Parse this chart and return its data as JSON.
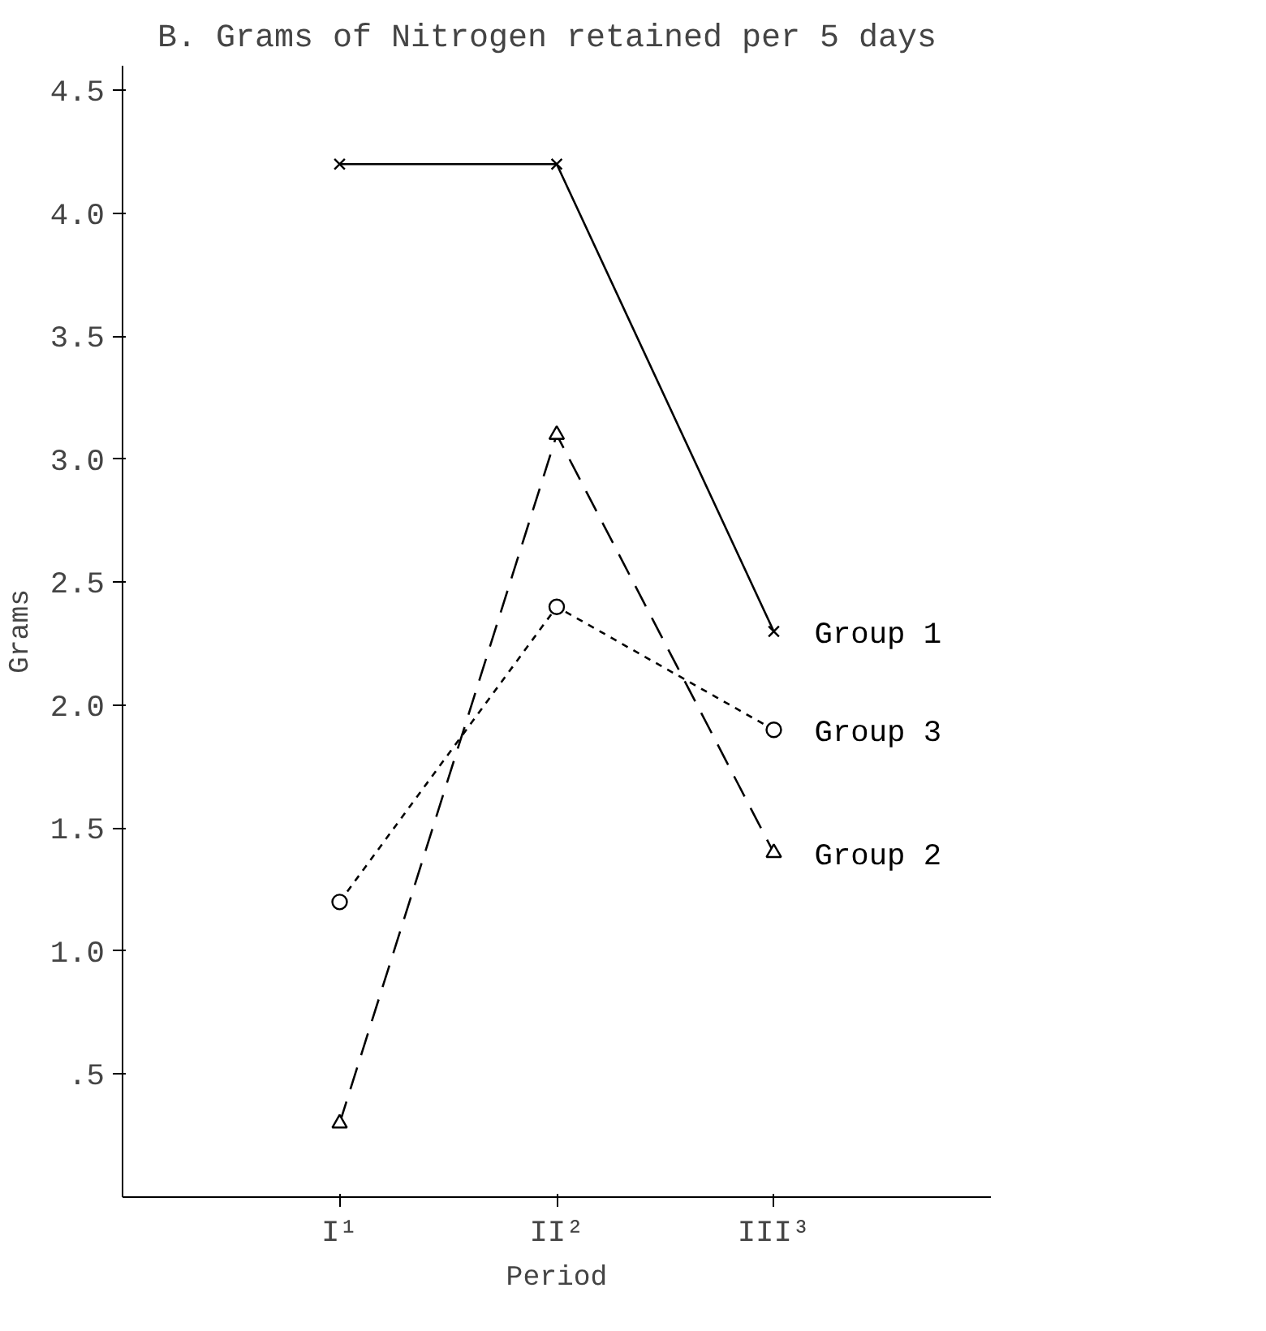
{
  "chart_data": {
    "type": "line",
    "title": "B.  Grams of Nitrogen retained per 5 days",
    "xlabel": "Period",
    "ylabel": "Grams",
    "categories": [
      "I¹",
      "II²",
      "III³"
    ],
    "series": [
      {
        "name": "Group 1",
        "color": "#000000",
        "values": [
          4.2,
          4.2,
          2.3
        ],
        "marker": "cross",
        "line_style": "solid"
      },
      {
        "name": "Group 2",
        "color": "#000000",
        "values": [
          0.3,
          3.1,
          1.4
        ],
        "marker": "triangle",
        "line_style": "dashed"
      },
      {
        "name": "Group 3",
        "color": "#000000",
        "values": [
          1.2,
          2.4,
          1.9
        ],
        "marker": "circle",
        "line_style": "dotted"
      }
    ],
    "ylim": [
      0,
      4.6
    ],
    "yticks": [
      {
        "value": 0.5,
        "label": ".5"
      },
      {
        "value": 1,
        "label": "1.0"
      },
      {
        "value": 1.5,
        "label": "1.5"
      },
      {
        "value": 2,
        "label": "2.0"
      },
      {
        "value": 2.5,
        "label": "2.5"
      },
      {
        "value": 3,
        "label": "3.0"
      },
      {
        "value": 3.5,
        "label": "3.5"
      },
      {
        "value": 4,
        "label": "4.0"
      },
      {
        "value": 4.5,
        "label": "4.5"
      }
    ],
    "grid": false
  }
}
